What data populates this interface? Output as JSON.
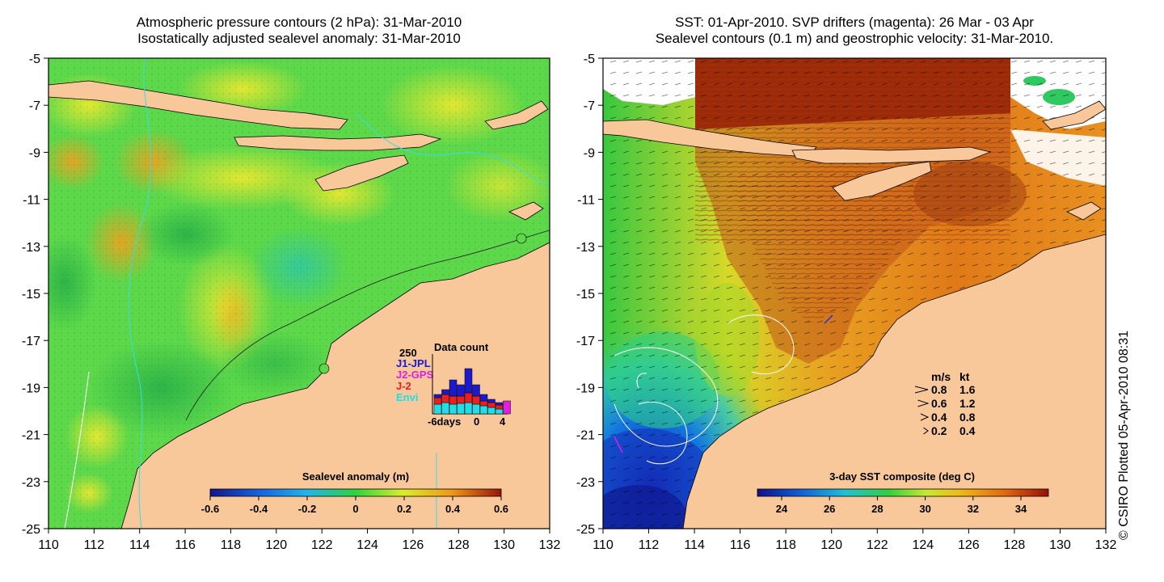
{
  "left_panel": {
    "title_line1": "Atmospheric pressure contours (2 hPa): 31-Mar-2010",
    "title_line2": "Isostatically adjusted sealevel anomaly: 31-Mar-2010",
    "x_ticks": [
      "110",
      "112",
      "114",
      "116",
      "118",
      "120",
      "122",
      "124",
      "126",
      "128",
      "130",
      "132"
    ],
    "y_ticks": [
      "-5",
      "-7",
      "-9",
      "-11",
      "-13",
      "-15",
      "-17",
      "-19",
      "-21",
      "-23",
      "-25"
    ],
    "colorbar": {
      "title": "Sealevel anomaly (m)",
      "ticks": [
        "-0.6",
        "-0.4",
        "-0.2",
        "0",
        "0.2",
        "0.4",
        "0.6"
      ]
    },
    "data_count": {
      "title": "Data count",
      "max_label": "250",
      "x_labels": [
        "-6days",
        "0",
        "4"
      ],
      "missions": [
        {
          "name": "J1-JPL",
          "color": "#1a1acc"
        },
        {
          "name": "J2-GPS",
          "color": "#e020e0"
        },
        {
          "name": "J-2",
          "color": "#e82020"
        },
        {
          "name": "Envi",
          "color": "#22dde8"
        }
      ]
    }
  },
  "right_panel": {
    "title_line1": "SST: 01-Apr-2010. SVP drifters (magenta): 26 Mar - 03 Apr",
    "title_line2": "Sealevel contours (0.1 m) and geostrophic velocity: 31-Mar-2010.",
    "x_ticks": [
      "110",
      "112",
      "114",
      "116",
      "118",
      "120",
      "122",
      "124",
      "126",
      "128",
      "130",
      "132"
    ],
    "y_ticks": [
      "-5",
      "-7",
      "-9",
      "-11",
      "-13",
      "-15",
      "-17",
      "-19",
      "-21",
      "-23",
      "-25"
    ],
    "colorbar": {
      "title": "3-day SST composite (deg C)",
      "ticks": [
        "24",
        "26",
        "28",
        "30",
        "32",
        "34"
      ]
    },
    "velocity_key": {
      "header_ms": "m/s",
      "header_kt": "kt",
      "rows": [
        {
          "ms": "0.8",
          "kt": "1.6"
        },
        {
          "ms": "0.6",
          "kt": "1.2"
        },
        {
          "ms": "0.4",
          "kt": "0.8"
        },
        {
          "ms": "0.2",
          "kt": "0.4"
        }
      ]
    }
  },
  "credit": "© CSIRO Plotted 05-Apr-2010 08:31",
  "colors": {
    "land": "#f8c89a",
    "cloud": "#ffffff",
    "sla_mid": "#5ee05e",
    "sst_warm": "#e08a1c",
    "sst_hot": "#9c2a08"
  }
}
